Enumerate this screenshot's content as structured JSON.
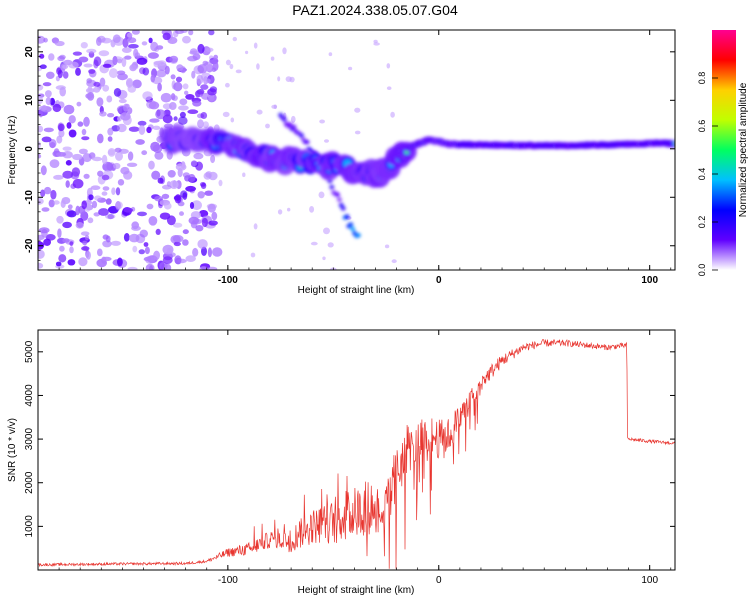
{
  "figure": {
    "title": "PAZ1.2024.338.05.07.G04"
  },
  "chart_data": [
    {
      "type": "heatmap",
      "xlabel": "Height of straight line (km)",
      "ylabel": "Frequency (Hz)",
      "xlim": [
        -190,
        112
      ],
      "ylim": [
        -25,
        24.5
      ],
      "xticks": [
        -100,
        0,
        100
      ],
      "yticks": [
        -20,
        -10,
        0,
        10,
        20
      ],
      "colorbar": {
        "label": "Normalized spectral amplitude",
        "range": [
          0,
          1
        ],
        "ticks": [
          0.0,
          0.2,
          0.4,
          0.6,
          0.8
        ],
        "colormap": "rainbow",
        "stops": [
          "#ffffff",
          "#6000ff",
          "#0000ff",
          "#00c0ff",
          "#00ff60",
          "#c0ff00",
          "#ffd000",
          "#ff0000",
          "#ff0090"
        ]
      },
      "ridge": [
        [
          -125,
          1.8
        ],
        [
          -110,
          1.5
        ],
        [
          -100,
          0.8
        ],
        [
          -90,
          -0.5
        ],
        [
          -80,
          -1.8
        ],
        [
          -70,
          -2.5
        ],
        [
          -60,
          -3.0
        ],
        [
          -50,
          -3.5
        ],
        [
          -40,
          -4.2
        ],
        [
          -30,
          -5.5
        ],
        [
          -25,
          -4.0
        ],
        [
          -20,
          -1.5
        ],
        [
          -15,
          0.0
        ],
        [
          -10,
          1.0
        ],
        [
          -5,
          1.8
        ],
        [
          0,
          1.5
        ],
        [
          5,
          1.0
        ],
        [
          10,
          0.9
        ],
        [
          20,
          0.8
        ],
        [
          40,
          0.7
        ],
        [
          60,
          0.7
        ],
        [
          80,
          0.8
        ],
        [
          95,
          1.0
        ],
        [
          105,
          1.2
        ],
        [
          112,
          1.0
        ]
      ],
      "secondary_track": [
        [
          -75,
          6.5
        ],
        [
          -65,
          3.0
        ],
        [
          -55,
          -4.0
        ],
        [
          -48,
          -10.0
        ],
        [
          -42,
          -16.0
        ],
        [
          -38,
          -18.5
        ]
      ],
      "noise_region": {
        "x": [
          -190,
          -105
        ],
        "y": [
          -25,
          24.5
        ]
      }
    },
    {
      "type": "line",
      "xlabel": "Height of straight line (km)",
      "ylabel": "SNR (10 * v/v)",
      "xlim": [
        -190,
        112
      ],
      "ylim": [
        0,
        5500
      ],
      "xticks": [
        -100,
        0,
        100
      ],
      "yticks": [
        1000,
        2000,
        3000,
        4000,
        5000
      ],
      "color": "#e8352f",
      "envelope": [
        [
          -190,
          120
        ],
        [
          -150,
          140
        ],
        [
          -120,
          150
        ],
        [
          -110,
          200
        ],
        [
          -100,
          400
        ],
        [
          -90,
          480
        ],
        [
          -80,
          700
        ],
        [
          -70,
          700
        ],
        [
          -60,
          1000
        ],
        [
          -50,
          1100
        ],
        [
          -40,
          1300
        ],
        [
          -30,
          1500
        ],
        [
          -25,
          1400
        ],
        [
          -20,
          2200
        ],
        [
          -15,
          2800
        ],
        [
          -10,
          2900
        ],
        [
          -5,
          3100
        ],
        [
          0,
          3000
        ],
        [
          5,
          3100
        ],
        [
          10,
          3500
        ],
        [
          15,
          3900
        ],
        [
          20,
          4300
        ],
        [
          30,
          4800
        ],
        [
          40,
          5100
        ],
        [
          50,
          5200
        ],
        [
          60,
          5200
        ],
        [
          70,
          5150
        ],
        [
          80,
          5100
        ],
        [
          89,
          5150
        ],
        [
          90,
          3000
        ],
        [
          100,
          2950
        ],
        [
          112,
          2900
        ]
      ],
      "noise_amplitude": [
        [
          -190,
          60
        ],
        [
          -110,
          60
        ],
        [
          -100,
          200
        ],
        [
          -80,
          400
        ],
        [
          -60,
          800
        ],
        [
          -40,
          1200
        ],
        [
          -30,
          1300
        ],
        [
          -20,
          1400
        ],
        [
          -10,
          1000
        ],
        [
          0,
          900
        ],
        [
          10,
          700
        ],
        [
          20,
          400
        ],
        [
          40,
          200
        ],
        [
          60,
          150
        ],
        [
          89,
          120
        ],
        [
          90,
          80
        ],
        [
          112,
          70
        ]
      ]
    }
  ]
}
